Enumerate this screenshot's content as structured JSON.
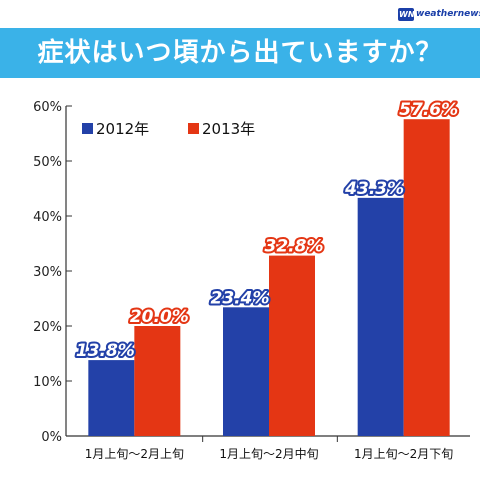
{
  "header": {
    "title": "症状はいつ頃から出ていますか？",
    "brand_logo": "WN",
    "brand_name": "weathernews"
  },
  "colors": {
    "title_band": "#3ab2e8",
    "series_2012": "#2341a8",
    "series_2013": "#e43614"
  },
  "chart_data": {
    "type": "bar",
    "title": "症状はいつ頃から出ていますか？",
    "xlabel": "",
    "ylabel": "",
    "ylim": [
      0,
      60
    ],
    "yticks": [
      "0%",
      "10%",
      "20%",
      "30%",
      "40%",
      "50%",
      "60%"
    ],
    "categories": [
      "1月上旬〜2月上旬",
      "1月上旬〜2月中旬",
      "1月上旬〜2月下旬"
    ],
    "series": [
      {
        "name": "2012年",
        "values": [
          13.8,
          23.4,
          43.3
        ],
        "labels": [
          "13.8%",
          "23.4%",
          "43.3%"
        ],
        "color": "#2341a8"
      },
      {
        "name": "2013年",
        "values": [
          20.0,
          32.8,
          57.6
        ],
        "labels": [
          "20.0%",
          "32.8%",
          "57.6%"
        ],
        "color": "#e43614"
      }
    ],
    "grid": false,
    "legend": "top-left"
  }
}
